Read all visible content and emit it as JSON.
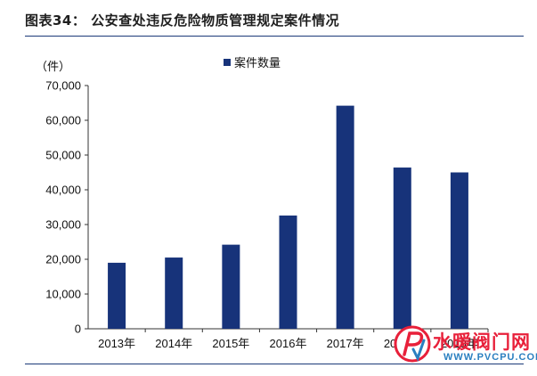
{
  "figure": {
    "title": "图表34：  公安查处违反危险物质管理规定案件情况"
  },
  "chart_data": {
    "type": "bar",
    "unit_label": "（件）",
    "categories": [
      "2013年",
      "2014年",
      "2015年",
      "2016年",
      "2017年",
      "2018年",
      "2019年"
    ],
    "series": [
      {
        "name": "案件数量",
        "values": [
          19000,
          20500,
          24200,
          32600,
          64200,
          46400,
          45000
        ],
        "color": "#17337a"
      }
    ],
    "ylim": [
      0,
      70000
    ],
    "yticks": [
      "0",
      "10,000",
      "20,000",
      "30,000",
      "40,000",
      "50,000",
      "60,000",
      "70,000"
    ],
    "ytick_values": [
      0,
      10000,
      20000,
      30000,
      40000,
      50000,
      60000,
      70000
    ],
    "grid": false,
    "legend_position": "top"
  },
  "watermark": {
    "text": "水暖阀门网",
    "url": "WWW.PVCPU.COM",
    "logo_icon": "pv-logo-icon"
  },
  "colors": {
    "bar": "#17337a",
    "rule": "#1b3a78",
    "watermark_red": "#e8203a",
    "watermark_blue": "#2a7fc0"
  }
}
